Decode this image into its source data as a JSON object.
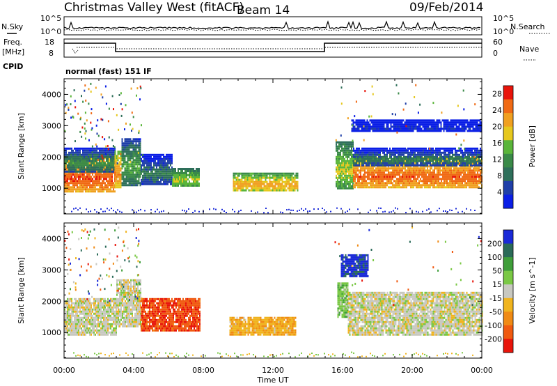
{
  "header": {
    "site": "Christmas Valley West (fitACF)",
    "beam": "Beam 14",
    "date": "09/Feb/2014"
  },
  "param_panel": {
    "nsky_label": "N.Sky",
    "nsearch_label": "N.Search",
    "noise_ticks": [
      "10^5",
      "10^0"
    ],
    "freq_label_line1": "Freq.",
    "freq_label_line2": "[MHz]",
    "freq_ticks": [
      "18",
      "8"
    ],
    "nave_label": "Nave",
    "nave_ticks": [
      "60",
      "0"
    ],
    "cpid_label": "CPID",
    "cpid_value": "normal (fast) 151 IF"
  },
  "colors": {
    "power": [
      "#0a1ee6",
      "#1f3fa8",
      "#2e6f5a",
      "#3a8a48",
      "#5ab53a",
      "#e6c81e",
      "#f0a020",
      "#f06a14",
      "#e8140a"
    ],
    "velocity": [
      "#1a2ad8",
      "#2a6a58",
      "#3f9e3a",
      "#7ac844",
      "#c8c8c0",
      "#f0b41e",
      "#f08a14",
      "#f05a10",
      "#e8140a"
    ]
  },
  "chart_data": [
    {
      "type": "heatmap",
      "name": "power",
      "x_ticks": [
        "00:00",
        "04:00",
        "08:00",
        "12:00",
        "16:00",
        "20:00",
        "00:00"
      ],
      "x_range_hours": [
        0,
        24
      ],
      "xlabel": "",
      "ylabel": "Slant Range [km]",
      "y_ticks": [
        1000,
        2000,
        3000,
        4000
      ],
      "y_range_km": [
        180,
        4500
      ],
      "colorbar_label": "Power [dB]",
      "colorbar_ticks": [
        4,
        8,
        12,
        16,
        20,
        24,
        28
      ],
      "colorbar_range": [
        0,
        30
      ],
      "regions": [
        {
          "t": [
            0.0,
            2.9
          ],
          "r": [
            900,
            2000
          ],
          "v": 27
        },
        {
          "t": [
            0.0,
            2.9
          ],
          "r": [
            1500,
            2300
          ],
          "v": 12
        },
        {
          "t": [
            2.9,
            3.3
          ],
          "r": [
            1000,
            2200
          ],
          "v": 24
        },
        {
          "t": [
            3.3,
            4.4
          ],
          "r": [
            1100,
            2600
          ],
          "v": 14
        },
        {
          "t": [
            4.4,
            6.2
          ],
          "r": [
            1100,
            2100
          ],
          "v": 10
        },
        {
          "t": [
            6.2,
            7.8
          ],
          "r": [
            1050,
            1650
          ],
          "v": 18
        },
        {
          "t": [
            9.7,
            13.4
          ],
          "r": [
            900,
            1500
          ],
          "v": 22
        },
        {
          "t": [
            15.6,
            16.6
          ],
          "r": [
            1000,
            2500
          ],
          "v": 18
        },
        {
          "t": [
            16.6,
            24.0
          ],
          "r": [
            1000,
            2000
          ],
          "v": 26
        },
        {
          "t": [
            16.6,
            24.0
          ],
          "r": [
            1700,
            2300
          ],
          "v": 10
        },
        {
          "t": [
            16.5,
            24.0
          ],
          "r": [
            2800,
            3200
          ],
          "v": 4
        }
      ]
    },
    {
      "type": "heatmap",
      "name": "velocity",
      "x_ticks": [
        "00:00",
        "04:00",
        "08:00",
        "12:00",
        "16:00",
        "20:00",
        "00:00"
      ],
      "x_range_hours": [
        0,
        24
      ],
      "xlabel": "Time UT",
      "ylabel": "Slant Range [km]",
      "y_ticks": [
        1000,
        2000,
        3000,
        4000
      ],
      "y_range_km": [
        180,
        4500
      ],
      "colorbar_label": "Velocity [m s^-1]",
      "colorbar_ticks": [
        200,
        100,
        50,
        15,
        -15,
        -50,
        -100,
        -200
      ],
      "colorbar_range": [
        -250,
        250
      ],
      "regions": [
        {
          "t": [
            0.0,
            3.0
          ],
          "r": [
            900,
            2100
          ],
          "v": 0
        },
        {
          "t": [
            3.0,
            4.4
          ],
          "r": [
            1200,
            2700
          ],
          "v": 0
        },
        {
          "t": [
            4.4,
            7.8
          ],
          "r": [
            1050,
            2100
          ],
          "v": -180
        },
        {
          "t": [
            9.5,
            13.3
          ],
          "r": [
            900,
            1500
          ],
          "v": -70
        },
        {
          "t": [
            15.7,
            16.3
          ],
          "r": [
            1500,
            2600
          ],
          "v": 60
        },
        {
          "t": [
            16.3,
            24.0
          ],
          "r": [
            950,
            2300
          ],
          "v": 0
        },
        {
          "t": [
            15.9,
            17.5
          ],
          "r": [
            2800,
            3500
          ],
          "v": 220
        }
      ]
    }
  ]
}
